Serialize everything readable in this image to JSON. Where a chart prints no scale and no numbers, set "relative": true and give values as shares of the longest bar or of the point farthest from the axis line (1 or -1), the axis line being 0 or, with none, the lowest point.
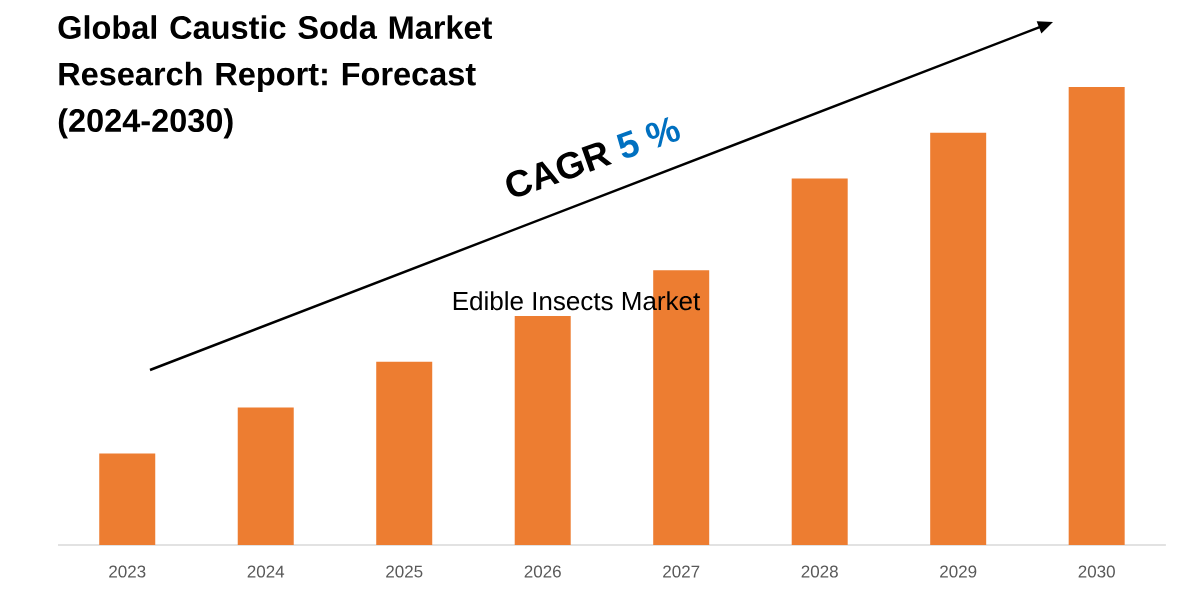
{
  "chart_data": {
    "type": "bar",
    "title": "Global Caustic Soda Market Research Report: Forecast (2024-2030)",
    "categories": [
      "2023",
      "2024",
      "2025",
      "2026",
      "2027",
      "2028",
      "2029",
      "2030"
    ],
    "values": [
      0.2,
      0.3,
      0.4,
      0.5,
      0.6,
      0.8,
      0.9,
      1
    ],
    "color": "#ed7d31",
    "relative": true,
    "annotations": [
      "CAGR",
      "5 %",
      "Edible Insects Market"
    ]
  }
}
